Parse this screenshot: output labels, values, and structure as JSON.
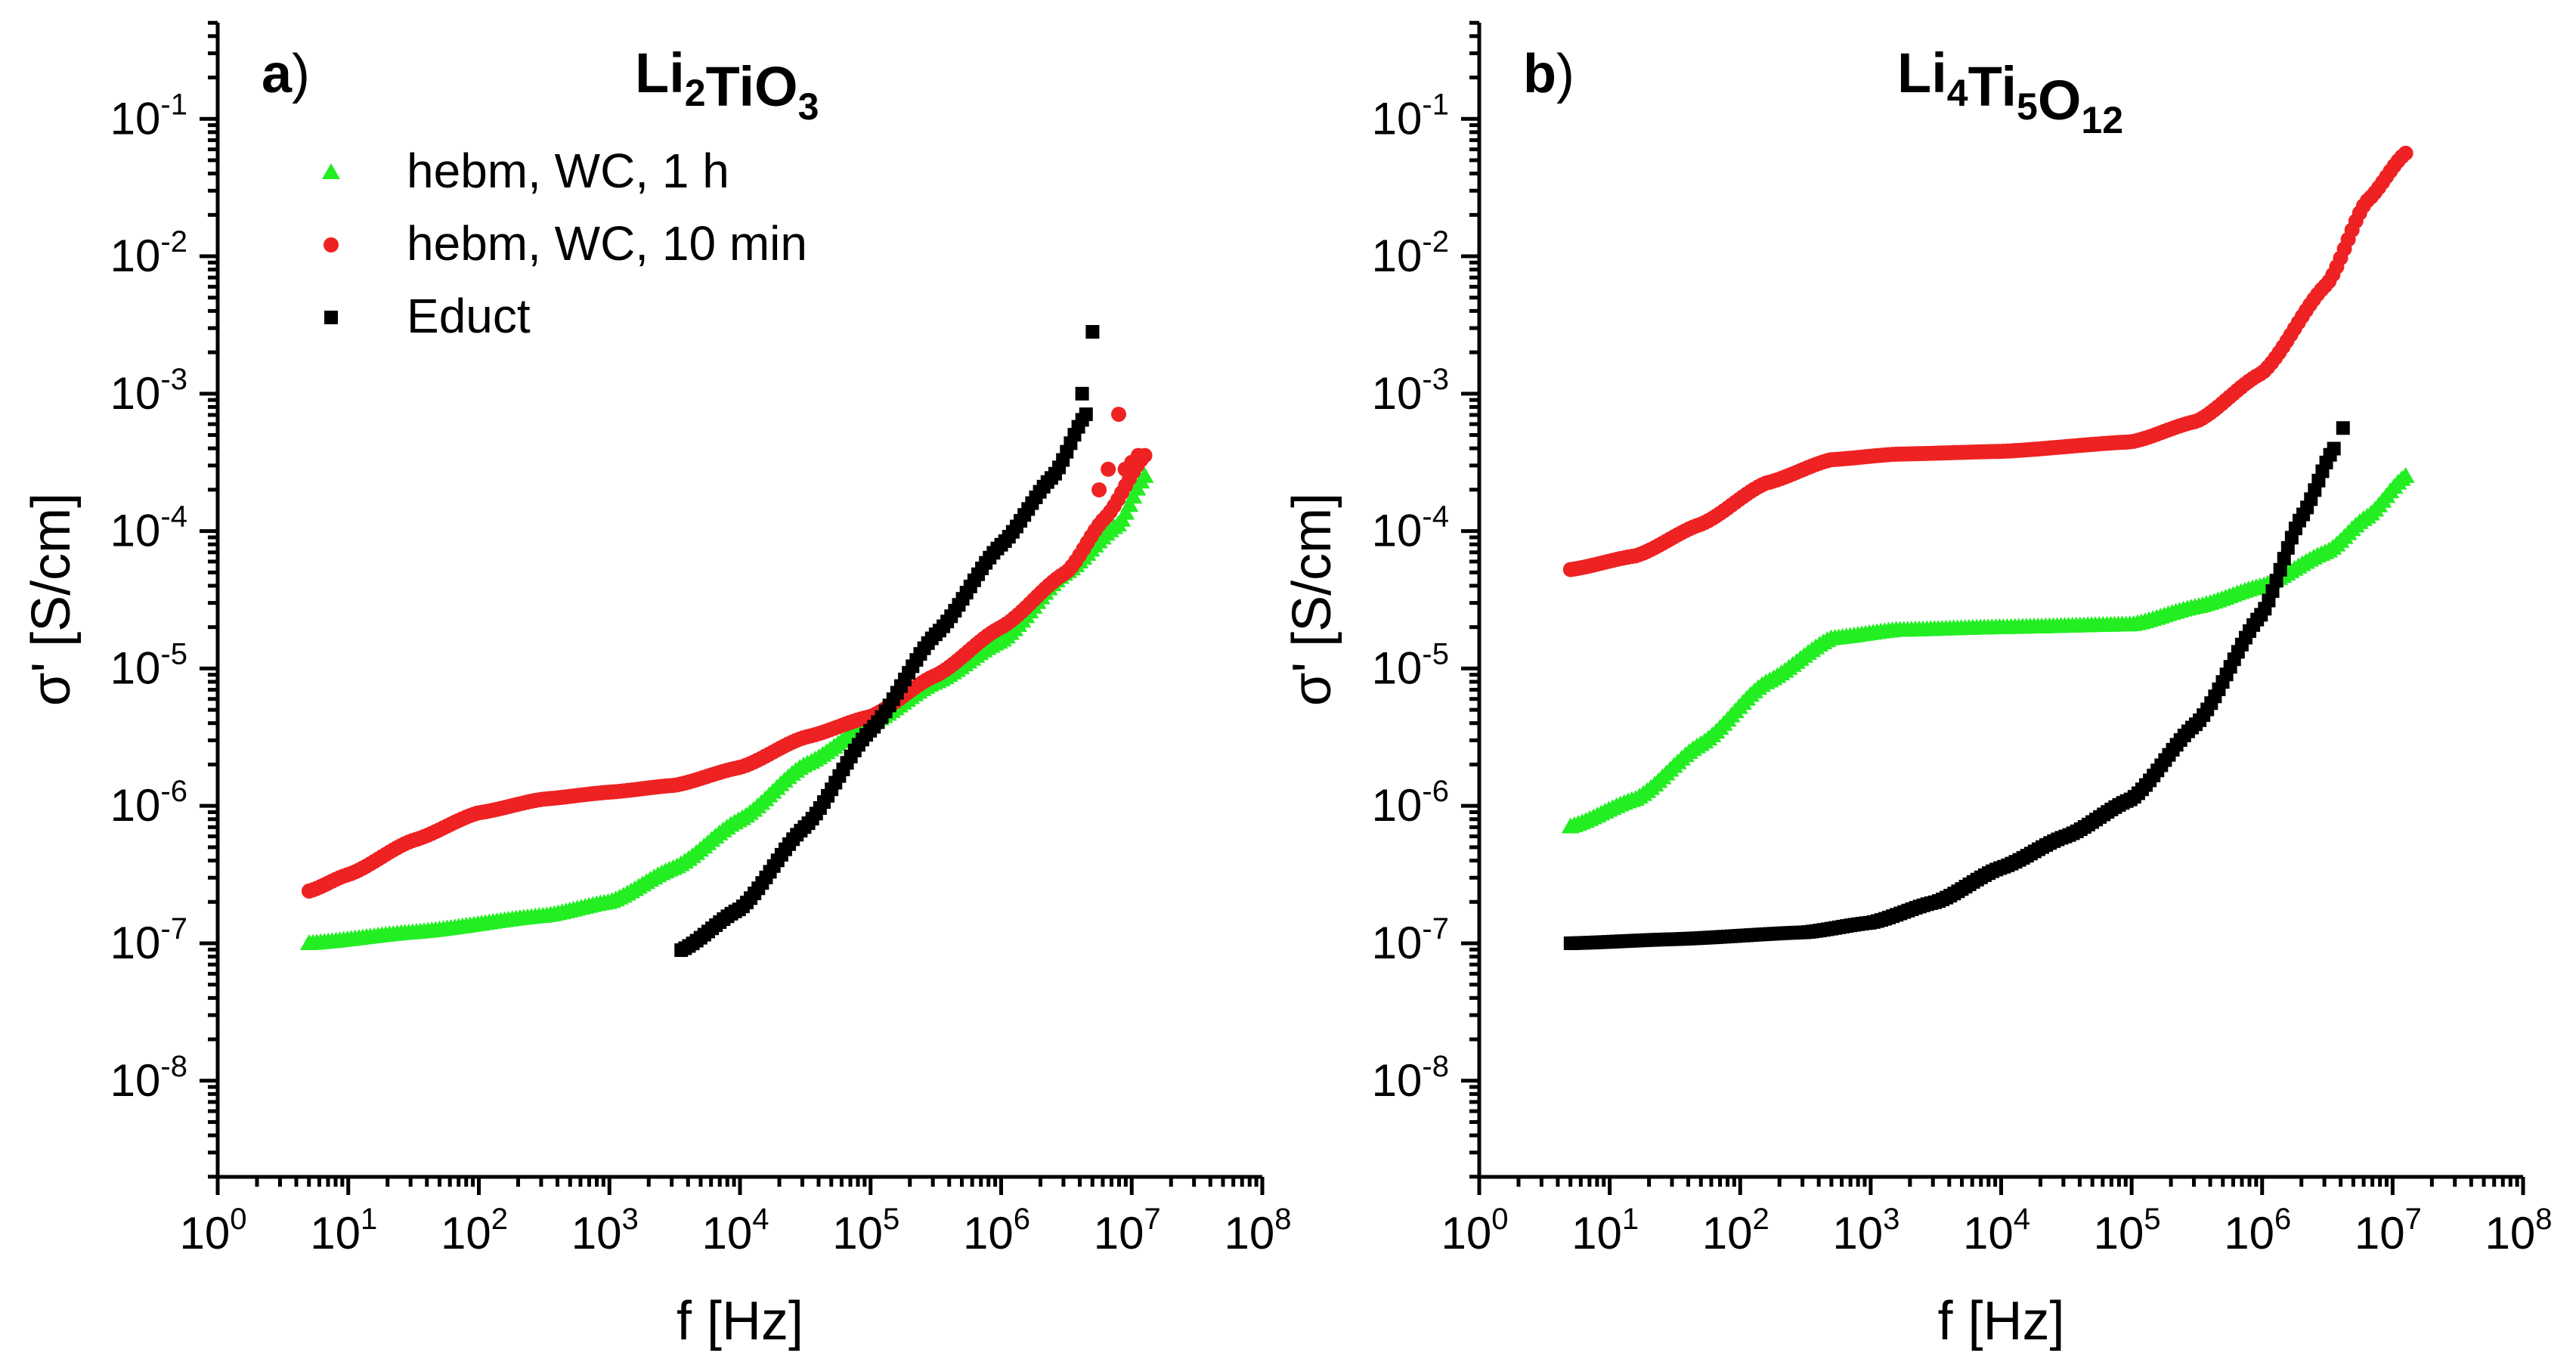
{
  "chart_data": [
    {
      "type": "scatter",
      "panel_letter": "a",
      "panel_paren": ")",
      "title": {
        "base": [
          "Li",
          "TiO"
        ],
        "subs": [
          "2",
          "3"
        ]
      },
      "xlabel": "f [Hz]",
      "ylabel": "σ' [S/cm]",
      "xscale": "log",
      "yscale": "log",
      "xlim_exp": [
        0,
        8
      ],
      "ylim_exp": [
        -8.7,
        -0.3
      ],
      "x_tick_exponents": [
        0,
        1,
        2,
        3,
        4,
        5,
        6,
        7,
        8
      ],
      "y_tick_exponents": [
        -8,
        -7,
        -6,
        -5,
        -4,
        -3,
        -2,
        -1
      ],
      "tick_base": "10",
      "legend_position": "top-left",
      "series": [
        {
          "name": "hebm, WC, 1 h",
          "color": "#22ee22",
          "marker": "triangle",
          "log_f_start": 0.7,
          "log_f_end": 7.1,
          "curve": [
            [
              0.7,
              -7.0
            ],
            [
              1.5,
              -6.92
            ],
            [
              2.5,
              -6.8
            ],
            [
              3.0,
              -6.7
            ],
            [
              3.5,
              -6.45
            ],
            [
              4.0,
              -6.1
            ],
            [
              4.5,
              -5.7
            ],
            [
              5.0,
              -5.4
            ],
            [
              5.5,
              -5.1
            ],
            [
              6.0,
              -4.8
            ],
            [
              6.5,
              -4.3
            ],
            [
              6.9,
              -3.95
            ],
            [
              7.1,
              -3.6
            ]
          ]
        },
        {
          "name": "hebm, WC, 10 min",
          "color": "#ee2222",
          "marker": "circle",
          "log_f_start": 0.7,
          "log_f_end": 7.1,
          "curve": [
            [
              0.7,
              -6.62
            ],
            [
              1.0,
              -6.5
            ],
            [
              1.5,
              -6.25
            ],
            [
              2.0,
              -6.05
            ],
            [
              2.5,
              -5.95
            ],
            [
              3.0,
              -5.9
            ],
            [
              3.5,
              -5.85
            ],
            [
              4.0,
              -5.72
            ],
            [
              4.5,
              -5.5
            ],
            [
              5.0,
              -5.35
            ],
            [
              5.5,
              -5.05
            ],
            [
              6.0,
              -4.7
            ],
            [
              6.5,
              -4.3
            ],
            [
              6.8,
              -3.9
            ],
            [
              7.1,
              -3.45
            ]
          ],
          "outliers": [
            [
              6.75,
              -3.7
            ],
            [
              6.82,
              -3.55
            ],
            [
              6.9,
              -3.15
            ],
            [
              6.95,
              -3.55
            ],
            [
              7.0,
              -3.5
            ],
            [
              7.05,
              -3.45
            ]
          ]
        },
        {
          "name": "Educt",
          "color": "#000000",
          "marker": "square",
          "log_f_start": 3.55,
          "log_f_end": 6.65,
          "curve": [
            [
              3.55,
              -7.05
            ],
            [
              4.0,
              -6.75
            ],
            [
              4.5,
              -6.15
            ],
            [
              5.0,
              -5.45
            ],
            [
              5.5,
              -4.75
            ],
            [
              6.0,
              -4.1
            ],
            [
              6.4,
              -3.6
            ],
            [
              6.65,
              -3.15
            ]
          ],
          "outliers": [
            [
              6.62,
              -3.0
            ],
            [
              6.7,
              -2.55
            ]
          ]
        }
      ]
    },
    {
      "type": "scatter",
      "panel_letter": "b",
      "panel_paren": ")",
      "title": {
        "base": [
          "Li",
          "Ti",
          "O"
        ],
        "subs": [
          "4",
          "5",
          "12"
        ]
      },
      "xlabel": "f [Hz]",
      "ylabel": "σ' [S/cm]",
      "xscale": "log",
      "yscale": "log",
      "xlim_exp": [
        0,
        8
      ],
      "ylim_exp": [
        -8.7,
        -0.3
      ],
      "x_tick_exponents": [
        0,
        1,
        2,
        3,
        4,
        5,
        6,
        7,
        8
      ],
      "y_tick_exponents": [
        -8,
        -7,
        -6,
        -5,
        -4,
        -3,
        -2,
        -1
      ],
      "tick_base": "10",
      "series": [
        {
          "name": "hebm, WC, 10 min",
          "color": "#ee2222",
          "marker": "circle",
          "log_f_start": 0.7,
          "log_f_end": 7.1,
          "curve": [
            [
              0.7,
              -4.28
            ],
            [
              1.2,
              -4.18
            ],
            [
              1.7,
              -3.95
            ],
            [
              2.2,
              -3.65
            ],
            [
              2.7,
              -3.48
            ],
            [
              3.2,
              -3.44
            ],
            [
              4.0,
              -3.42
            ],
            [
              5.0,
              -3.35
            ],
            [
              5.5,
              -3.2
            ],
            [
              6.0,
              -2.85
            ],
            [
              6.5,
              -2.2
            ],
            [
              6.8,
              -1.6
            ],
            [
              7.1,
              -1.25
            ]
          ]
        },
        {
          "name": "hebm, WC, 1 h",
          "color": "#22ee22",
          "marker": "triangle",
          "log_f_start": 0.7,
          "log_f_end": 7.1,
          "curve": [
            [
              0.7,
              -6.15
            ],
            [
              1.2,
              -5.95
            ],
            [
              1.7,
              -5.55
            ],
            [
              2.2,
              -5.1
            ],
            [
              2.7,
              -4.78
            ],
            [
              3.2,
              -4.72
            ],
            [
              4.0,
              -4.7
            ],
            [
              5.0,
              -4.68
            ],
            [
              5.5,
              -4.55
            ],
            [
              6.0,
              -4.4
            ],
            [
              6.5,
              -4.15
            ],
            [
              6.8,
              -3.9
            ],
            [
              7.1,
              -3.6
            ]
          ]
        },
        {
          "name": "Educt",
          "color": "#000000",
          "marker": "square",
          "log_f_start": 0.7,
          "log_f_end": 6.55,
          "curve": [
            [
              0.7,
              -7.0
            ],
            [
              1.5,
              -6.97
            ],
            [
              2.5,
              -6.92
            ],
            [
              3.0,
              -6.85
            ],
            [
              3.5,
              -6.7
            ],
            [
              4.0,
              -6.45
            ],
            [
              4.5,
              -6.22
            ],
            [
              5.0,
              -5.95
            ],
            [
              5.5,
              -5.4
            ],
            [
              6.0,
              -4.6
            ],
            [
              6.3,
              -3.9
            ],
            [
              6.55,
              -3.4
            ]
          ],
          "outliers": [
            [
              6.62,
              -3.25
            ]
          ]
        }
      ]
    }
  ]
}
